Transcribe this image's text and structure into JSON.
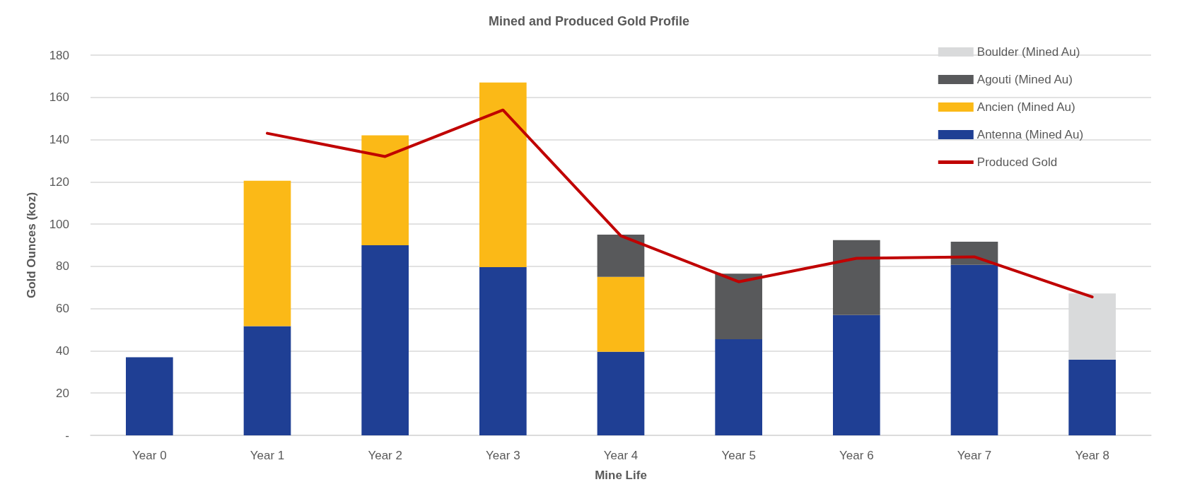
{
  "chart_data": {
    "type": "bar",
    "title": "Mined and Produced Gold Profile",
    "xlabel": "Mine Life",
    "ylabel": "Gold Ounces (koz)",
    "categories": [
      "Year 0",
      "Year 1",
      "Year 2",
      "Year 3",
      "Year 4",
      "Year 5",
      "Year 6",
      "Year 7",
      "Year 8"
    ],
    "stacked": true,
    "series": [
      {
        "name": "Antenna (Mined Au)",
        "color": "#1f3f94",
        "values": [
          37,
          51.7,
          90,
          79.6,
          39.6,
          45.5,
          57,
          80.7,
          35.8
        ]
      },
      {
        "name": "Ancien (Mined Au)",
        "color": "#fbb917",
        "values": [
          null,
          68.8,
          52,
          87.4,
          35.4,
          null,
          null,
          null,
          null
        ]
      },
      {
        "name": "Agouti (Mined Au)",
        "color": "#58595b",
        "values": [
          null,
          null,
          null,
          null,
          20,
          31,
          35.4,
          11,
          null
        ]
      },
      {
        "name": "Boulder (Mined Au)",
        "color": "#d9dadb",
        "values": [
          null,
          null,
          null,
          null,
          null,
          null,
          null,
          null,
          31.4
        ]
      },
      {
        "name": "Produced Gold",
        "type": "line",
        "color": "#c00000",
        "values": [
          null,
          143,
          132,
          154,
          94.5,
          72.7,
          83.8,
          84.5,
          65.5
        ]
      }
    ],
    "ylim": [
      0,
      180
    ],
    "yticks": [
      {
        "value": 0,
        "label": "-"
      },
      20,
      40,
      60,
      80,
      100,
      120,
      140,
      160,
      180
    ],
    "grid": "y",
    "legend": "top right",
    "marker": "none",
    "line_style": "solid"
  }
}
